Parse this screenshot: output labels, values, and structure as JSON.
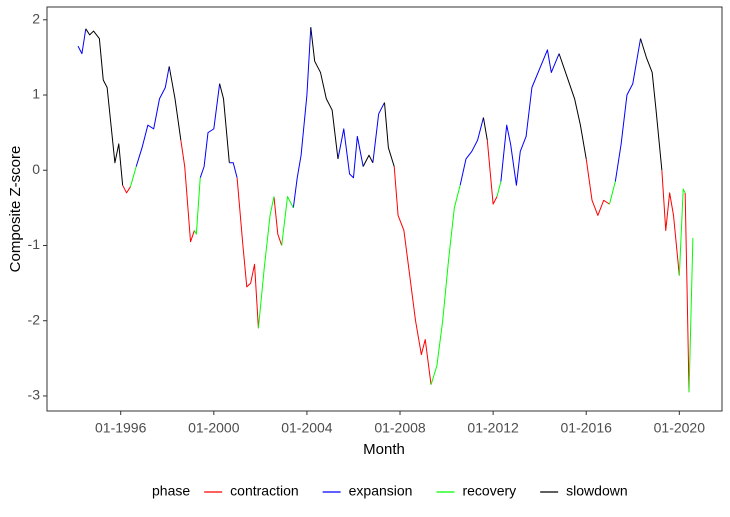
{
  "chart_data": {
    "type": "line",
    "x_label": "Month",
    "y_label": "Composite Z-score",
    "legend_title": "phase",
    "legend_position": "bottom",
    "grid": false,
    "xlim": [
      "1992-11",
      "2021-11"
    ],
    "ylim": [
      -3.2,
      2.17
    ],
    "xticks": [
      {
        "value": "1996-01",
        "label": "01-1996"
      },
      {
        "value": "2000-01",
        "label": "01-2000"
      },
      {
        "value": "2004-01",
        "label": "01-2004"
      },
      {
        "value": "2008-01",
        "label": "01-2008"
      },
      {
        "value": "2012-01",
        "label": "01-2012"
      },
      {
        "value": "2016-01",
        "label": "01-2016"
      },
      {
        "value": "2020-01",
        "label": "01-2020"
      }
    ],
    "yticks": [
      -3,
      -2,
      -1,
      0,
      1,
      2
    ],
    "x": [
      "1994-03",
      "1994-05",
      "1994-07",
      "1994-09",
      "1994-11",
      "1995-02",
      "1995-04",
      "1995-06",
      "1995-08",
      "1995-10",
      "1995-12",
      "1996-02",
      "1996-04",
      "1996-06",
      "1996-09",
      "1996-12",
      "1997-03",
      "1997-06",
      "1997-09",
      "1997-12",
      "1998-02",
      "1998-05",
      "1998-08",
      "1998-10",
      "1999-01",
      "1999-03",
      "1999-04",
      "1999-06",
      "1999-08",
      "1999-10",
      "2000-01",
      "2000-04",
      "2000-06",
      "2000-09",
      "2000-11",
      "2001-01",
      "2001-04",
      "2001-06",
      "2001-08",
      "2001-10",
      "2001-12",
      "2002-03",
      "2002-06",
      "2002-08",
      "2002-10",
      "2002-12",
      "2003-03",
      "2003-06",
      "2003-08",
      "2003-10",
      "2004-01",
      "2004-03",
      "2004-05",
      "2004-08",
      "2004-11",
      "2005-02",
      "2005-05",
      "2005-08",
      "2005-11",
      "2006-01",
      "2006-03",
      "2006-06",
      "2006-09",
      "2006-11",
      "2007-02",
      "2007-05",
      "2007-07",
      "2007-10",
      "2007-12",
      "2008-03",
      "2008-06",
      "2008-09",
      "2008-12",
      "2009-02",
      "2009-05",
      "2009-08",
      "2009-11",
      "2010-02",
      "2010-05",
      "2010-08",
      "2010-11",
      "2011-02",
      "2011-05",
      "2011-08",
      "2011-10",
      "2012-01",
      "2012-03",
      "2012-05",
      "2012-08",
      "2012-10",
      "2013-01",
      "2013-03",
      "2013-06",
      "2013-09",
      "2014-01",
      "2014-05",
      "2014-07",
      "2014-11",
      "2015-03",
      "2015-07",
      "2015-10",
      "2016-01",
      "2016-04",
      "2016-07",
      "2016-10",
      "2017-01",
      "2017-04",
      "2017-07",
      "2017-10",
      "2018-01",
      "2018-05",
      "2018-08",
      "2018-11",
      "2019-01",
      "2019-04",
      "2019-06",
      "2019-08",
      "2019-10",
      "2020-01",
      "2020-03",
      "2020-04",
      "2020-05",
      "2020-06",
      "2020-08"
    ],
    "series": [
      {
        "name": "contraction",
        "color": "#ff0000",
        "values": [
          null,
          null,
          null,
          null,
          null,
          null,
          null,
          null,
          null,
          null,
          null,
          -0.2,
          -0.3,
          -0.22,
          null,
          null,
          null,
          null,
          null,
          null,
          null,
          null,
          0.4,
          0.05,
          -0.95,
          -0.8,
          null,
          null,
          null,
          null,
          null,
          null,
          null,
          null,
          null,
          -0.1,
          -1.0,
          -1.55,
          -1.5,
          -1.25,
          -2.1,
          null,
          null,
          -0.35,
          -0.85,
          -1.0,
          null,
          null,
          null,
          null,
          null,
          null,
          null,
          null,
          null,
          null,
          null,
          null,
          null,
          null,
          null,
          null,
          null,
          null,
          null,
          null,
          null,
          0.05,
          -0.6,
          -0.8,
          -1.4,
          -2.0,
          -2.45,
          -2.25,
          -2.85,
          null,
          null,
          null,
          null,
          null,
          null,
          null,
          null,
          null,
          0.4,
          -0.45,
          -0.35,
          null,
          null,
          null,
          null,
          null,
          null,
          null,
          null,
          null,
          null,
          null,
          null,
          null,
          null,
          0.15,
          -0.4,
          -0.6,
          -0.4,
          -0.45,
          null,
          null,
          null,
          null,
          null,
          null,
          null,
          null,
          0.0,
          -0.8,
          -0.3,
          -0.6,
          -1.4,
          null,
          -0.3,
          -1.6,
          -2.95,
          null
        ]
      },
      {
        "name": "expansion",
        "color": "#0000ff",
        "values": [
          1.65,
          1.55,
          1.88,
          null,
          null,
          null,
          null,
          null,
          null,
          null,
          null,
          null,
          null,
          null,
          0.05,
          0.3,
          0.6,
          0.55,
          0.95,
          1.1,
          1.38,
          null,
          null,
          null,
          null,
          null,
          null,
          -0.1,
          0.05,
          0.5,
          0.55,
          1.15,
          null,
          0.1,
          0.1,
          -0.1,
          null,
          null,
          null,
          null,
          null,
          null,
          null,
          null,
          null,
          null,
          null,
          -0.5,
          -0.1,
          0.2,
          1.0,
          1.9,
          null,
          null,
          null,
          null,
          0.15,
          0.55,
          -0.05,
          -0.1,
          0.45,
          0.05,
          null,
          0.1,
          0.75,
          0.9,
          null,
          null,
          null,
          null,
          null,
          null,
          null,
          null,
          null,
          null,
          null,
          null,
          null,
          -0.2,
          0.15,
          0.25,
          0.4,
          0.7,
          null,
          null,
          null,
          -0.15,
          0.6,
          0.35,
          -0.2,
          0.25,
          0.45,
          1.1,
          1.35,
          1.6,
          1.3,
          1.55,
          null,
          null,
          null,
          null,
          null,
          null,
          null,
          null,
          -0.15,
          0.35,
          1.0,
          1.15,
          1.75,
          null,
          null,
          null,
          null,
          null,
          null,
          null,
          null,
          null,
          null,
          null,
          null,
          null
        ]
      },
      {
        "name": "recovery",
        "color": "#00ff00",
        "values": [
          null,
          null,
          null,
          null,
          null,
          null,
          null,
          null,
          null,
          null,
          null,
          null,
          null,
          -0.22,
          0.05,
          null,
          null,
          null,
          null,
          null,
          null,
          null,
          null,
          null,
          null,
          -0.8,
          -0.85,
          -0.1,
          null,
          null,
          null,
          null,
          null,
          null,
          null,
          null,
          null,
          null,
          null,
          null,
          -2.1,
          -1.3,
          -0.6,
          -0.35,
          null,
          -1.0,
          -0.35,
          -0.5,
          null,
          null,
          null,
          null,
          null,
          null,
          null,
          null,
          null,
          null,
          null,
          null,
          null,
          null,
          null,
          null,
          null,
          null,
          null,
          null,
          null,
          null,
          null,
          null,
          null,
          null,
          -2.85,
          -2.6,
          -2.0,
          -1.2,
          -0.5,
          -0.2,
          null,
          null,
          null,
          null,
          null,
          null,
          -0.35,
          -0.15,
          null,
          null,
          null,
          null,
          null,
          null,
          null,
          null,
          null,
          null,
          null,
          null,
          null,
          null,
          null,
          null,
          null,
          -0.45,
          -0.15,
          null,
          null,
          null,
          null,
          null,
          null,
          null,
          null,
          null,
          null,
          null,
          -1.4,
          -0.25,
          -0.3,
          null,
          -2.95,
          -0.9
        ]
      },
      {
        "name": "slowdown",
        "color": "#000000",
        "values": [
          null,
          null,
          1.88,
          1.8,
          1.85,
          1.75,
          1.2,
          1.1,
          0.6,
          0.1,
          0.35,
          -0.2,
          null,
          null,
          null,
          null,
          null,
          null,
          null,
          null,
          1.38,
          0.95,
          0.4,
          null,
          null,
          null,
          null,
          null,
          null,
          null,
          null,
          1.15,
          0.95,
          0.1,
          null,
          null,
          null,
          null,
          null,
          null,
          null,
          null,
          null,
          null,
          null,
          null,
          null,
          null,
          null,
          null,
          null,
          1.9,
          1.45,
          1.3,
          0.95,
          0.8,
          0.15,
          null,
          null,
          null,
          null,
          0.05,
          0.2,
          0.1,
          null,
          0.9,
          0.3,
          0.05,
          null,
          null,
          null,
          null,
          null,
          null,
          null,
          null,
          null,
          null,
          null,
          null,
          null,
          null,
          null,
          0.7,
          0.4,
          null,
          null,
          null,
          null,
          null,
          null,
          null,
          null,
          null,
          null,
          null,
          null,
          1.55,
          1.25,
          0.95,
          0.6,
          0.15,
          null,
          null,
          null,
          null,
          null,
          null,
          null,
          null,
          1.75,
          1.5,
          1.3,
          0.8,
          0.0,
          null,
          null,
          null,
          null,
          null,
          null,
          null,
          null,
          null
        ]
      }
    ]
  }
}
